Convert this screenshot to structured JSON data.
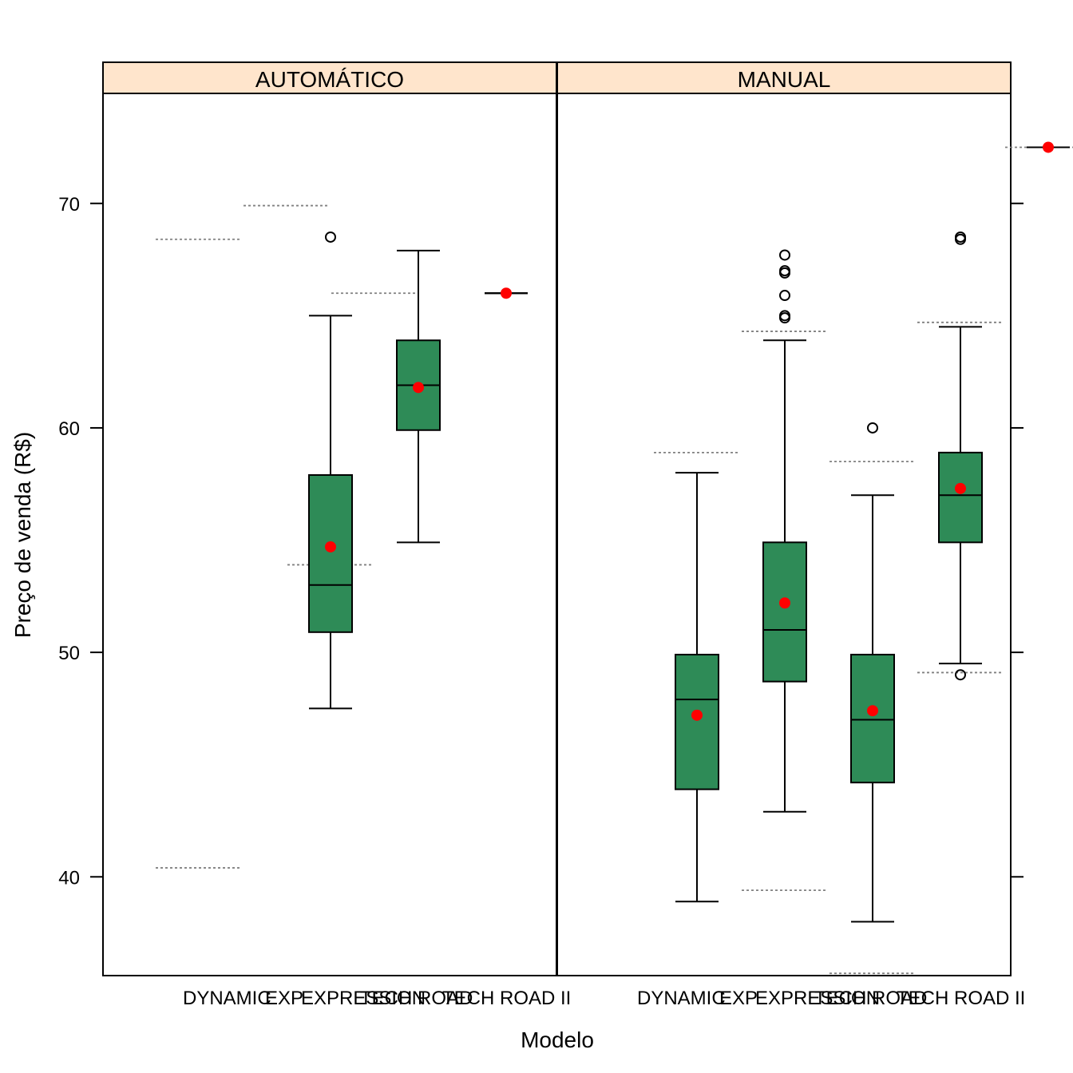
{
  "chart_data": {
    "type": "boxplot",
    "ylabel": "Preço de venda (R$)",
    "xlabel": "Modelo",
    "ylim": [
      35.6,
      74.9
    ],
    "yticks": [
      40,
      50,
      60,
      70
    ],
    "categories": [
      "DYNAMIC",
      "EXPRESSION",
      "TECH ROAD",
      "TECH ROAD II"
    ],
    "category_labels": [
      "DYNAMIC",
      "EXP",
      "EXPRESSION",
      "TECH ROAD",
      "TECH ROAD II"
    ],
    "colors": {
      "strip": "#ffe5cc",
      "box": "#2e8b57",
      "mean": "#ff0000",
      "reference": "#808080"
    },
    "panels": [
      {
        "name": "AUTOMÁTICO",
        "boxes": [
          null,
          {
            "category": "EXPRESSION",
            "whisker_low": 47.5,
            "q1": 50.9,
            "median": 53.0,
            "q3": 57.9,
            "whisker_high": 65.0,
            "mean": 54.7,
            "outliers": [
              68.5
            ],
            "reference_line": 53.9
          },
          {
            "category": "TECH ROAD",
            "whisker_low": 54.9,
            "q1": 59.9,
            "median": 61.9,
            "q3": 63.9,
            "whisker_high": 67.9,
            "mean": 61.8,
            "outliers": []
          },
          {
            "category": "TECH ROAD II",
            "whisker_low": 66.0,
            "q1": 66.0,
            "median": 66.0,
            "q3": 66.0,
            "whisker_high": 66.0,
            "mean": 66.0,
            "outliers": []
          }
        ],
        "reference_lines": [
          {
            "position": 0.5,
            "value": 40.4
          },
          {
            "position": 0.5,
            "value": 68.4
          },
          {
            "position": 1.5,
            "value": 69.9
          },
          {
            "position": 2.5,
            "value": 66.0
          }
        ]
      },
      {
        "name": "MANUAL",
        "boxes": [
          {
            "category": "DYNAMIC",
            "whisker_low": 38.9,
            "q1": 43.9,
            "median": 47.9,
            "q3": 49.9,
            "whisker_high": 58.0,
            "mean": 47.2,
            "outliers": []
          },
          {
            "category": "EXPRESSION",
            "whisker_low": 42.9,
            "q1": 48.7,
            "median": 51.0,
            "q3": 54.9,
            "whisker_high": 63.9,
            "mean": 52.2,
            "outliers": [
              64.9,
              65.0,
              65.9,
              66.9,
              67.0,
              67.7
            ]
          },
          {
            "category": "TECH ROAD",
            "whisker_low": 38.0,
            "q1": 44.2,
            "median": 47.0,
            "q3": 49.9,
            "whisker_high": 57.0,
            "mean": 47.4,
            "outliers": [
              60.0
            ]
          },
          {
            "category": "TECH ROAD II",
            "whisker_low": 49.5,
            "q1": 54.9,
            "median": 57.0,
            "q3": 58.9,
            "whisker_high": 64.5,
            "mean": 57.3,
            "outliers": [
              49.0,
              68.4,
              68.5
            ]
          }
        ],
        "extra": {
          "position": 5,
          "mean": 72.5,
          "median": 72.5
        },
        "reference_lines": [
          {
            "position": 1,
            "value": 58.9
          },
          {
            "position": 2,
            "value": 64.3
          },
          {
            "position": 2,
            "value": 39.4
          },
          {
            "position": 3,
            "value": 58.5
          },
          {
            "position": 3,
            "value": 35.7
          },
          {
            "position": 4,
            "value": 64.7
          },
          {
            "position": 4,
            "value": 49.1
          },
          {
            "position": 5,
            "value": 72.5
          }
        ]
      }
    ]
  }
}
